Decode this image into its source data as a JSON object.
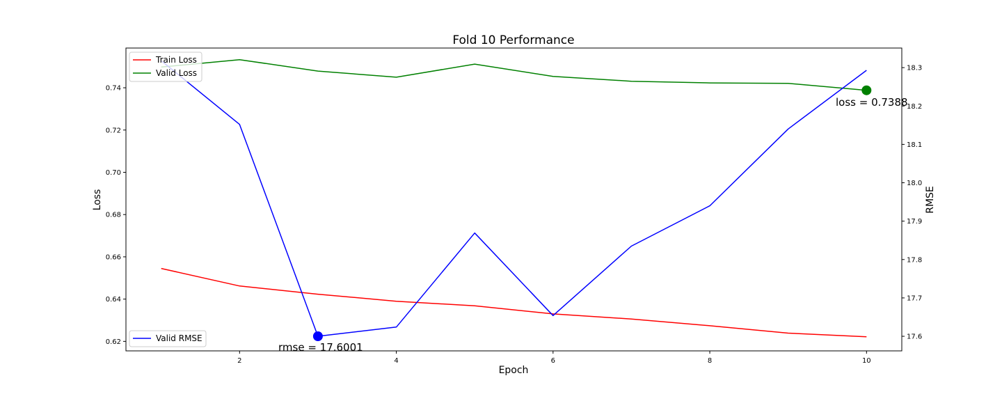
{
  "chart_data": {
    "type": "line",
    "title": "Fold 10 Performance",
    "xlabel": "Epoch",
    "ylabel_left": "Loss",
    "ylabel_right": "RMSE",
    "xlim": [
      0.55,
      10.45
    ],
    "ylim_left": [
      0.6155,
      0.7588
    ],
    "ylim_right": [
      17.562,
      18.351
    ],
    "x": [
      1,
      2,
      3,
      4,
      5,
      6,
      7,
      8,
      9,
      10
    ],
    "xticks": [
      2,
      4,
      6,
      8,
      10
    ],
    "yticks_left": [
      0.62,
      0.64,
      0.66,
      0.68,
      0.7,
      0.72,
      0.74
    ],
    "yticks_right": [
      17.6,
      17.7,
      17.8,
      17.9,
      18.0,
      18.1,
      18.2,
      18.3
    ],
    "grid": false,
    "series": [
      {
        "name": "Train Loss",
        "axis": "left",
        "color": "#ff0000",
        "values": [
          0.6545,
          0.6462,
          0.6423,
          0.639,
          0.6368,
          0.633,
          0.6306,
          0.6274,
          0.6239,
          0.6222
        ]
      },
      {
        "name": "Valid Loss",
        "axis": "left",
        "color": "#008000",
        "values": [
          0.7498,
          0.7533,
          0.7479,
          0.745,
          0.7512,
          0.7454,
          0.7431,
          0.7423,
          0.7421,
          0.7388
        ]
      },
      {
        "name": "Valid RMSE",
        "axis": "right",
        "color": "#0000ff",
        "values": [
          18.318,
          18.152,
          17.6,
          17.624,
          17.869,
          17.654,
          17.835,
          17.94,
          18.14,
          18.293
        ]
      }
    ],
    "legend_left": {
      "placement": "upper-left",
      "entries": [
        "Train Loss",
        "Valid Loss"
      ]
    },
    "legend_right": {
      "placement": "lower-left",
      "entries": [
        "Valid RMSE"
      ]
    },
    "annotations": [
      {
        "text": "rmse = 17.6001",
        "x": 3,
        "y": 17.6001,
        "axis": "right",
        "color": "#0000ff"
      },
      {
        "text": "loss = 0.7388",
        "x": 10,
        "y": 0.7388,
        "axis": "left",
        "color": "#008000"
      }
    ]
  }
}
